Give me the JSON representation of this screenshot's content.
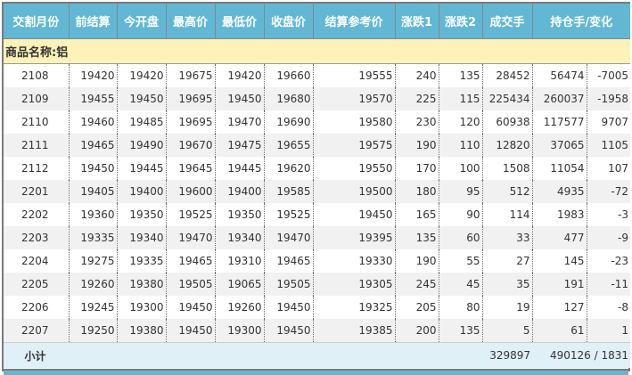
{
  "headers": [
    "交割月份",
    "前结算",
    "今开盘",
    "最高价",
    "最低价",
    "收盘价",
    "结算参考价",
    "涨跌1",
    "涨跌2",
    "成交手",
    "持仓手/变化"
  ],
  "category_label": "商品名称:铝",
  "rows": [
    [
      "2108",
      "19420",
      "19420",
      "19675",
      "19420",
      "19660",
      "19555",
      "240",
      "135",
      "28452",
      "56474",
      "-7005"
    ],
    [
      "2109",
      "19455",
      "19450",
      "19695",
      "19450",
      "19680",
      "19570",
      "225",
      "115",
      "225434",
      "260037",
      "-1958"
    ],
    [
      "2110",
      "19460",
      "19485",
      "19695",
      "19470",
      "19690",
      "19580",
      "230",
      "120",
      "60938",
      "117577",
      "9707"
    ],
    [
      "2111",
      "19465",
      "19490",
      "19670",
      "19475",
      "19655",
      "19575",
      "190",
      "110",
      "12820",
      "37065",
      "1105"
    ],
    [
      "2112",
      "19450",
      "19445",
      "19645",
      "19445",
      "19620",
      "19550",
      "170",
      "100",
      "1508",
      "11054",
      "107"
    ],
    [
      "2201",
      "19405",
      "19400",
      "19600",
      "19400",
      "19585",
      "19500",
      "180",
      "95",
      "512",
      "4935",
      "-72"
    ],
    [
      "2202",
      "19360",
      "19350",
      "19525",
      "19350",
      "19525",
      "19450",
      "165",
      "90",
      "114",
      "1983",
      "-3"
    ],
    [
      "2203",
      "19335",
      "19340",
      "19470",
      "19340",
      "19470",
      "19395",
      "135",
      "60",
      "33",
      "477",
      "-9"
    ],
    [
      "2204",
      "19275",
      "19335",
      "19465",
      "19310",
      "19465",
      "19330",
      "190",
      "55",
      "27",
      "145",
      "-23"
    ],
    [
      "2205",
      "19260",
      "19380",
      "19505",
      "19065",
      "19505",
      "19305",
      "245",
      "45",
      "35",
      "191",
      "-11"
    ],
    [
      "2206",
      "19245",
      "19300",
      "19450",
      "19260",
      "19450",
      "19325",
      "205",
      "80",
      "19",
      "127",
      "-8"
    ],
    [
      "2207",
      "19250",
      "19380",
      "19450",
      "19300",
      "19450",
      "19385",
      "200",
      "135",
      "5",
      "61",
      "1"
    ]
  ],
  "subtotal": {
    "label": "小计",
    "volume": "329897",
    "open_interest": "490126 / 1831"
  },
  "colors": {
    "header_bg": "#62b8d4",
    "category_bg": "#fff2b8",
    "subtotal_bg": "#dff0f7"
  }
}
